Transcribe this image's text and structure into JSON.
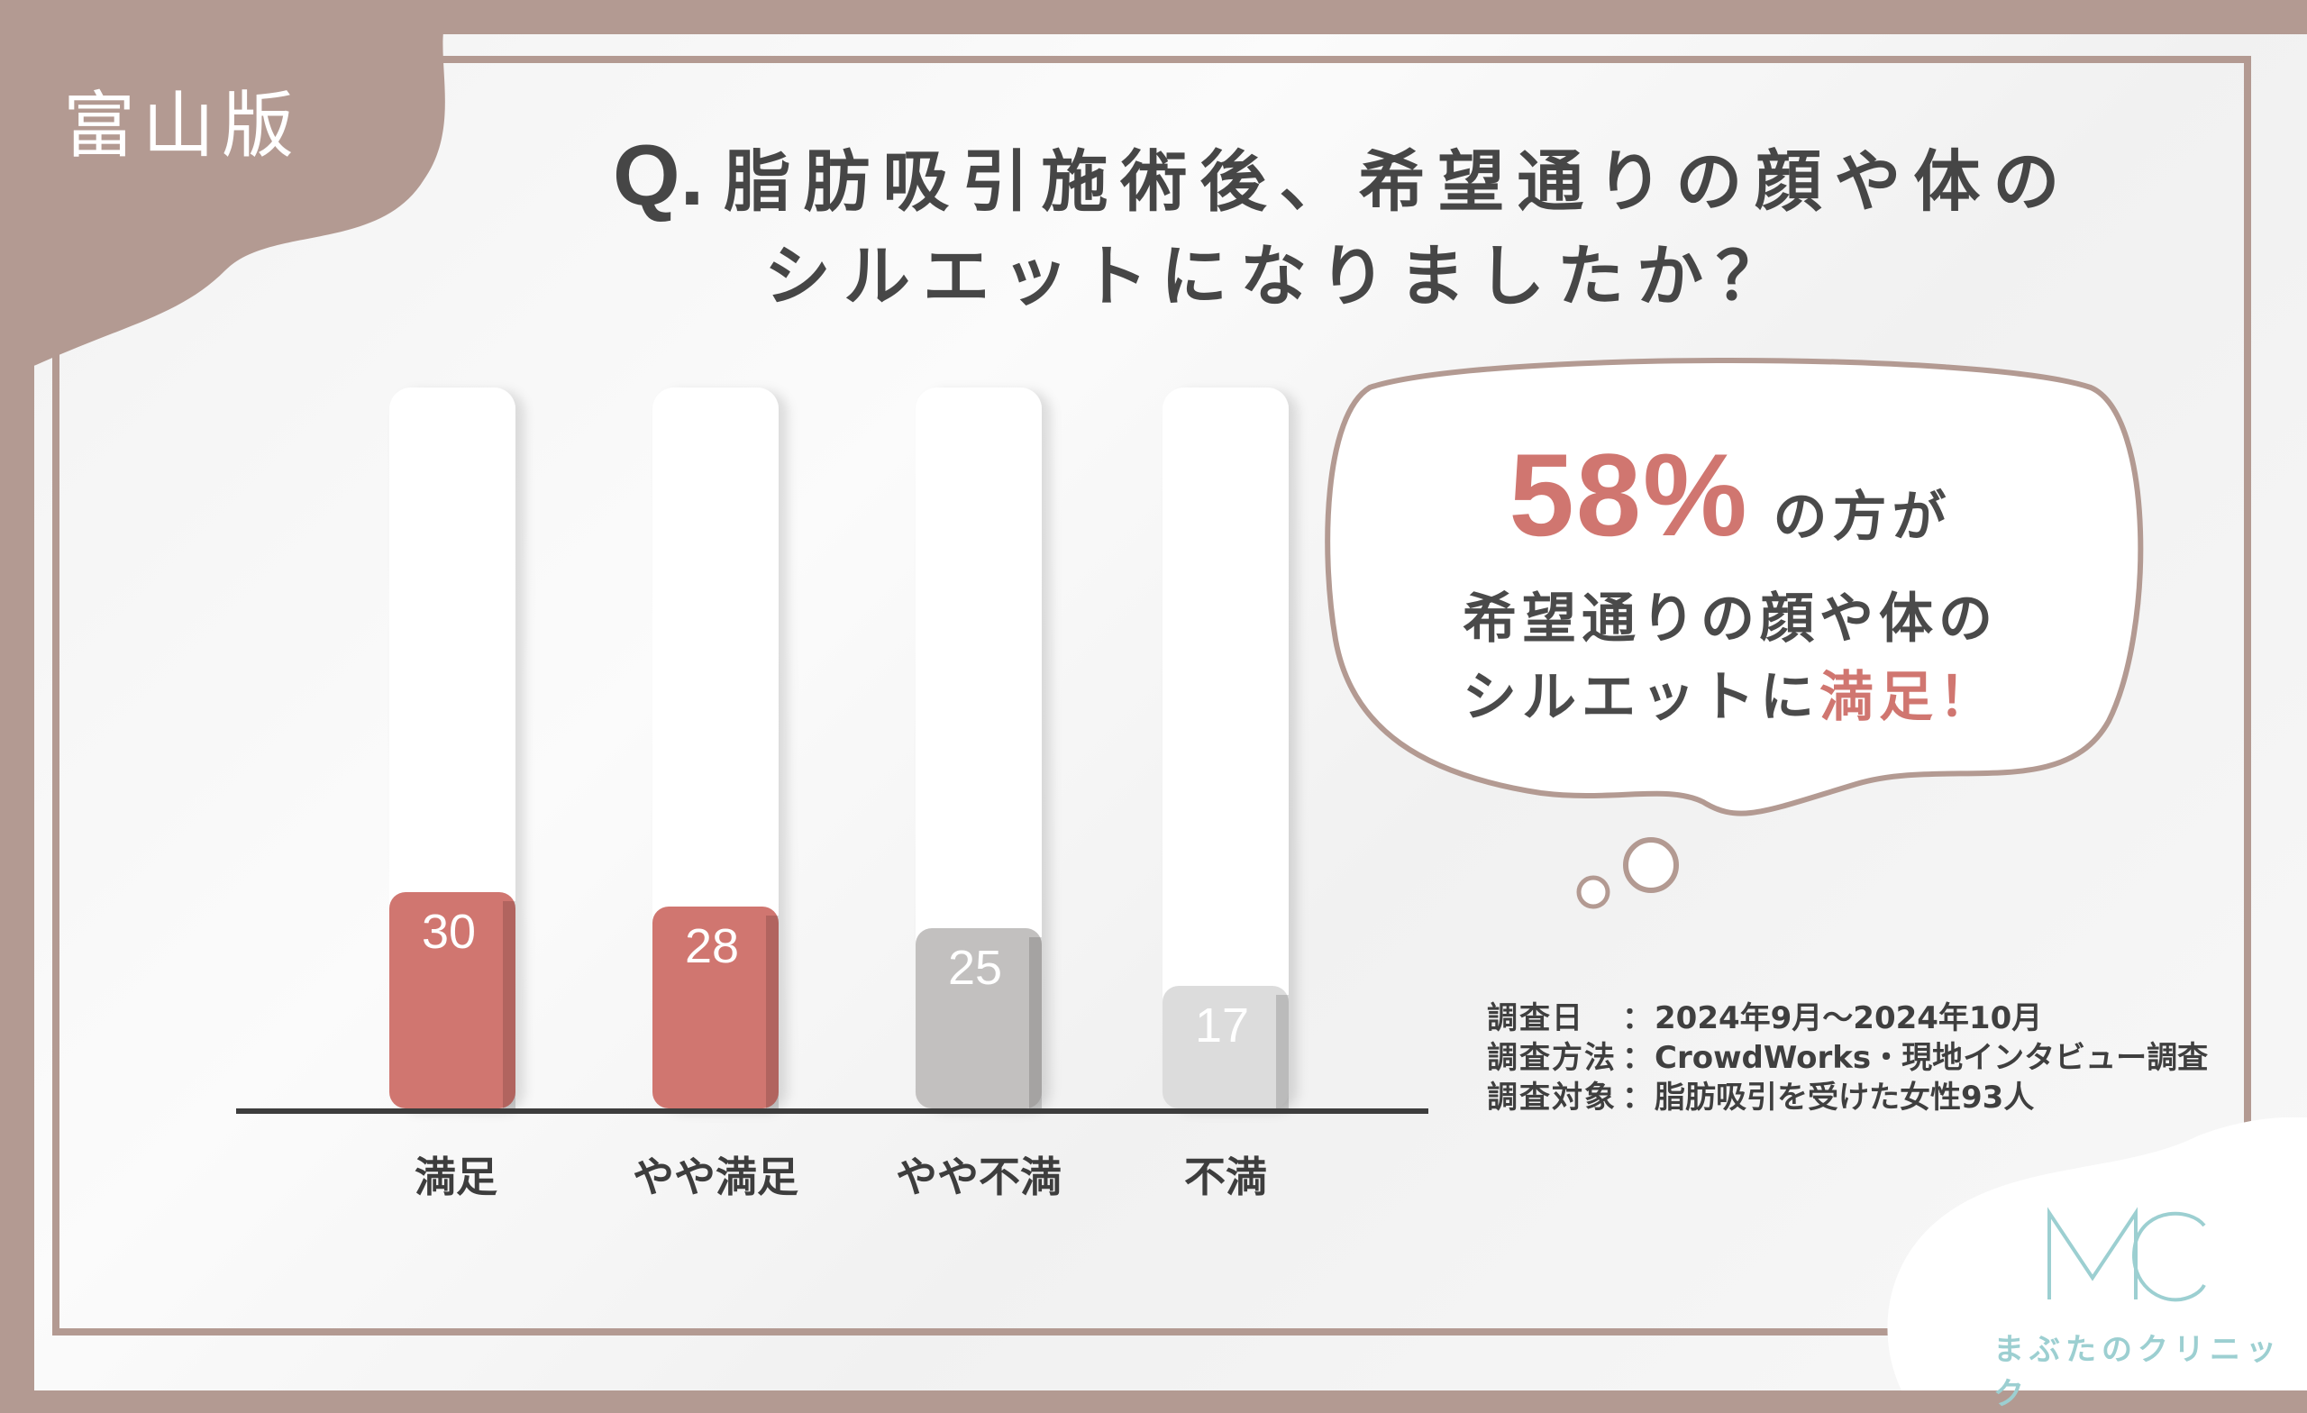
{
  "region_label": "富山版",
  "question": {
    "mark": "Q.",
    "line1": "脂肪吸引施術後、希望通りの顔や体の",
    "line2": "シルエットになりましたか？"
  },
  "callout": {
    "percent": "58%",
    "after_percent": "の方が",
    "line2": "希望通りの顔や体の",
    "line3_prefix": "シルエットに",
    "line3_accent": "満足！"
  },
  "survey": {
    "rows": [
      {
        "key": "調査日",
        "value": "2024年9月〜2024年10月"
      },
      {
        "key": "調査方法",
        "value": "CrowdWorks・現地インタビュー調査"
      },
      {
        "key": "調査対象",
        "value": "脂肪吸引を受けた女性93人"
      }
    ]
  },
  "logo": {
    "mark": "MC",
    "name": "まぶたのクリニック"
  },
  "colors": {
    "brand_frame": "#b39a92",
    "satisfied_bar": "#d07670",
    "neutral_bar": "#c2c0bf",
    "dissatisfied_bar": "#dcdcdc",
    "logo": "#9ccfd1"
  },
  "chart_data": {
    "type": "bar",
    "categories": [
      "満足",
      "やや満足",
      "やや不満",
      "不満"
    ],
    "values": [
      30,
      28,
      25,
      17
    ],
    "ylim": [
      0,
      100
    ],
    "bar_colors": [
      "#d07670",
      "#d07670",
      "#c2c0bf",
      "#dcdcdc"
    ],
    "grid": false,
    "legend": "none"
  }
}
